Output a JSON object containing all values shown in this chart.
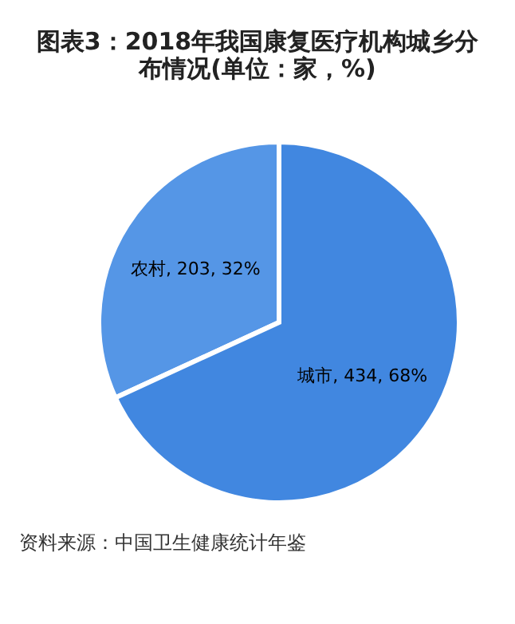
{
  "chart_data": {
    "type": "pie",
    "title": "图表3：2018年我国康复医疗机构城乡分布情况(单位：家，%)",
    "categories": [
      "农村",
      "城市"
    ],
    "values": [
      203,
      434
    ],
    "value_labels": [
      "203, 32%",
      "434, 68%"
    ],
    "colors": [
      "#5596e6",
      "#4187e0"
    ],
    "annotations": [
      "资料来源：中国卫生健康统计年鉴"
    ],
    "legend": false
  }
}
